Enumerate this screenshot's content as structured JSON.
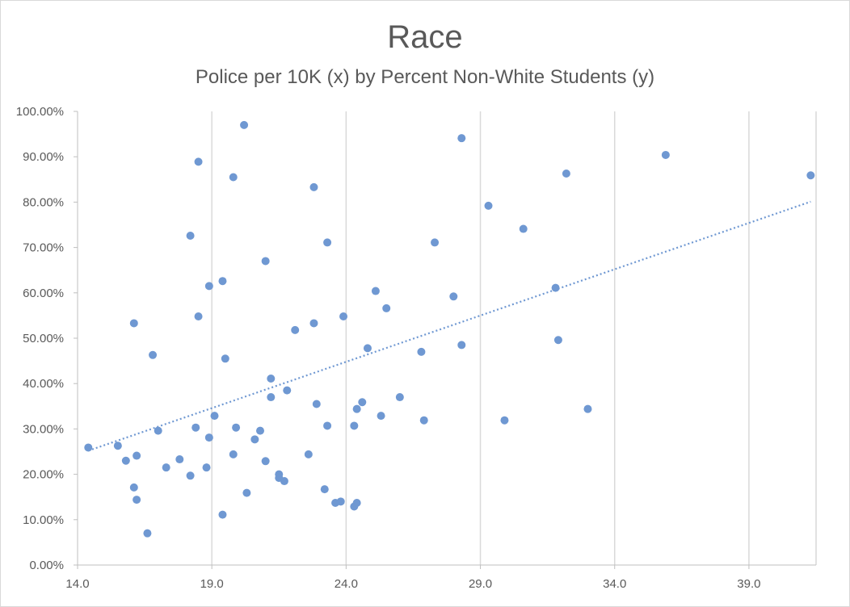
{
  "chart_data": {
    "type": "scatter",
    "title": "Race",
    "subtitle": "Police per 10K (x) by Percent Non-White Students (y)",
    "xlabel": "",
    "ylabel": "",
    "xlim": [
      14.0,
      41.5
    ],
    "ylim": [
      0.0,
      100.0
    ],
    "x_ticks": [
      14.0,
      19.0,
      24.0,
      29.0,
      34.0,
      39.0
    ],
    "x_tick_labels": [
      "14.0",
      "19.0",
      "24.0",
      "29.0",
      "34.0",
      "39.0"
    ],
    "y_ticks": [
      0,
      10,
      20,
      30,
      40,
      50,
      60,
      70,
      80,
      90,
      100
    ],
    "y_tick_labels": [
      "0.00%",
      "10.00%",
      "20.00%",
      "30.00%",
      "40.00%",
      "50.00%",
      "60.00%",
      "70.00%",
      "80.00%",
      "90.00%",
      "100.00%"
    ],
    "grid": "vertical",
    "point_color": "#6f98d2",
    "trendline_color": "#6f98d2",
    "trendline": {
      "type": "linear",
      "x": [
        14.4,
        41.3
      ],
      "y": [
        25.2,
        80.1
      ]
    },
    "series": [
      {
        "points": [
          {
            "x": 14.4,
            "y": 25.9
          },
          {
            "x": 15.5,
            "y": 26.3
          },
          {
            "x": 15.8,
            "y": 23.0
          },
          {
            "x": 16.1,
            "y": 53.3
          },
          {
            "x": 16.1,
            "y": 17.1
          },
          {
            "x": 16.2,
            "y": 24.1
          },
          {
            "x": 16.2,
            "y": 14.4
          },
          {
            "x": 16.6,
            "y": 7.0
          },
          {
            "x": 16.8,
            "y": 46.3
          },
          {
            "x": 17.0,
            "y": 29.6
          },
          {
            "x": 17.3,
            "y": 21.5
          },
          {
            "x": 17.8,
            "y": 23.3
          },
          {
            "x": 18.2,
            "y": 72.6
          },
          {
            "x": 18.2,
            "y": 19.7
          },
          {
            "x": 18.4,
            "y": 30.3
          },
          {
            "x": 18.5,
            "y": 88.9
          },
          {
            "x": 18.5,
            "y": 54.8
          },
          {
            "x": 18.8,
            "y": 21.5
          },
          {
            "x": 18.9,
            "y": 61.5
          },
          {
            "x": 18.9,
            "y": 28.1
          },
          {
            "x": 19.1,
            "y": 32.9
          },
          {
            "x": 19.4,
            "y": 62.6
          },
          {
            "x": 19.4,
            "y": 11.1
          },
          {
            "x": 19.5,
            "y": 45.5
          },
          {
            "x": 19.8,
            "y": 85.5
          },
          {
            "x": 19.8,
            "y": 24.4
          },
          {
            "x": 19.9,
            "y": 30.3
          },
          {
            "x": 20.2,
            "y": 97.0
          },
          {
            "x": 20.3,
            "y": 15.9
          },
          {
            "x": 20.6,
            "y": 27.7
          },
          {
            "x": 20.8,
            "y": 29.6
          },
          {
            "x": 21.0,
            "y": 67.0
          },
          {
            "x": 21.0,
            "y": 22.9
          },
          {
            "x": 21.2,
            "y": 41.1
          },
          {
            "x": 21.2,
            "y": 37.0
          },
          {
            "x": 21.5,
            "y": 19.2
          },
          {
            "x": 21.5,
            "y": 20.0
          },
          {
            "x": 21.7,
            "y": 18.5
          },
          {
            "x": 21.8,
            "y": 38.5
          },
          {
            "x": 22.1,
            "y": 51.8
          },
          {
            "x": 22.6,
            "y": 24.4
          },
          {
            "x": 22.8,
            "y": 83.3
          },
          {
            "x": 22.8,
            "y": 53.3
          },
          {
            "x": 22.9,
            "y": 35.5
          },
          {
            "x": 23.3,
            "y": 71.1
          },
          {
            "x": 23.2,
            "y": 16.7
          },
          {
            "x": 23.3,
            "y": 30.7
          },
          {
            "x": 23.6,
            "y": 13.7
          },
          {
            "x": 23.8,
            "y": 14.0
          },
          {
            "x": 23.9,
            "y": 54.8
          },
          {
            "x": 24.3,
            "y": 30.7
          },
          {
            "x": 24.3,
            "y": 12.9
          },
          {
            "x": 24.4,
            "y": 34.4
          },
          {
            "x": 24.4,
            "y": 13.7
          },
          {
            "x": 24.6,
            "y": 35.9
          },
          {
            "x": 24.8,
            "y": 47.8
          },
          {
            "x": 25.1,
            "y": 60.4
          },
          {
            "x": 25.3,
            "y": 32.9
          },
          {
            "x": 25.5,
            "y": 56.6
          },
          {
            "x": 26.0,
            "y": 37.0
          },
          {
            "x": 26.8,
            "y": 47.0
          },
          {
            "x": 26.9,
            "y": 31.9
          },
          {
            "x": 27.3,
            "y": 71.1
          },
          {
            "x": 28.0,
            "y": 59.2
          },
          {
            "x": 28.3,
            "y": 94.1
          },
          {
            "x": 28.3,
            "y": 48.5
          },
          {
            "x": 29.3,
            "y": 79.2
          },
          {
            "x": 29.9,
            "y": 31.9
          },
          {
            "x": 30.6,
            "y": 74.1
          },
          {
            "x": 31.8,
            "y": 61.1
          },
          {
            "x": 31.9,
            "y": 49.6
          },
          {
            "x": 32.2,
            "y": 86.3
          },
          {
            "x": 33.0,
            "y": 34.4
          },
          {
            "x": 35.9,
            "y": 90.4
          },
          {
            "x": 41.3,
            "y": 85.9
          }
        ]
      }
    ]
  }
}
